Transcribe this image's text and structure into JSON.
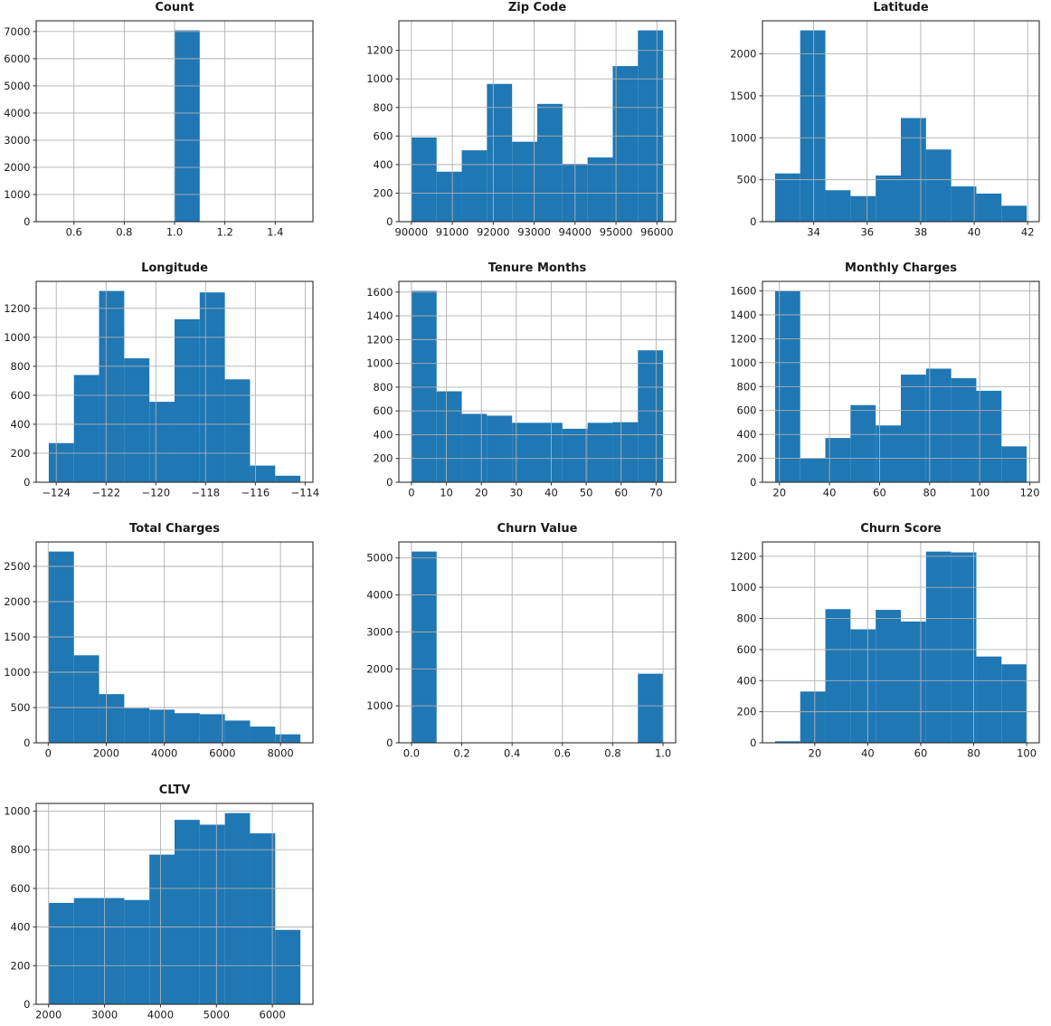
{
  "figure": {
    "background": "#ffffff",
    "bar_color": "#1f77b4",
    "grid_color": "#b0b0b0",
    "spine_color": "#2e2e2e",
    "text_color": "#1a1a1a"
  },
  "chart_data": [
    {
      "type": "histogram",
      "title": "Count",
      "xlabel": "",
      "ylabel": "",
      "grid": true,
      "bin_start": 0.5,
      "bin_width": 0.1,
      "values": [
        0,
        0,
        0,
        0,
        0,
        7043,
        0,
        0,
        0,
        0
      ],
      "xlim": [
        0.45,
        1.55
      ],
      "ylim": [
        0,
        7395
      ],
      "xticks": [
        0.6,
        0.8,
        1.0,
        1.2,
        1.4
      ],
      "xtick_labels": [
        "0.6",
        "0.8",
        "1.0",
        "1.2",
        "1.4"
      ],
      "yticks": [
        0,
        1000,
        2000,
        3000,
        4000,
        5000,
        6000,
        7000
      ],
      "ytick_labels": [
        "0",
        "1000",
        "2000",
        "3000",
        "4000",
        "5000",
        "6000",
        "7000"
      ]
    },
    {
      "type": "histogram",
      "title": "Zip Code",
      "xlabel": "",
      "ylabel": "",
      "grid": true,
      "bin_start": 90001,
      "bin_width": 614.9,
      "values": [
        590,
        350,
        500,
        965,
        560,
        825,
        405,
        450,
        1090,
        1340
      ],
      "xlim": [
        89694,
        96457
      ],
      "ylim": [
        0,
        1407
      ],
      "xticks": [
        90000,
        91000,
        92000,
        93000,
        94000,
        95000,
        96000
      ],
      "xtick_labels": [
        "90000",
        "91000",
        "92000",
        "93000",
        "94000",
        "95000",
        "96000"
      ],
      "yticks": [
        0,
        200,
        400,
        600,
        800,
        1000,
        1200
      ],
      "ytick_labels": [
        "0",
        "200",
        "400",
        "600",
        "800",
        "1000",
        "1200"
      ]
    },
    {
      "type": "histogram",
      "title": "Latitude",
      "xlabel": "",
      "ylabel": "",
      "grid": true,
      "bin_start": 32.556,
      "bin_width": 0.9406,
      "values": [
        575,
        2280,
        375,
        305,
        550,
        1235,
        860,
        420,
        335,
        190
      ],
      "xlim": [
        32.086,
        42.432
      ],
      "ylim": [
        0,
        2394
      ],
      "xticks": [
        34,
        36,
        38,
        40,
        42
      ],
      "xtick_labels": [
        "34",
        "36",
        "38",
        "40",
        "42"
      ],
      "yticks": [
        0,
        500,
        1000,
        1500,
        2000
      ],
      "ytick_labels": [
        "0",
        "500",
        "1000",
        "1500",
        "2000"
      ]
    },
    {
      "type": "histogram",
      "title": "Longitude",
      "xlabel": "",
      "ylabel": "",
      "grid": true,
      "bin_start": -124.3014,
      "bin_width": 1.0108,
      "values": [
        270,
        740,
        1320,
        855,
        555,
        1125,
        1310,
        710,
        115,
        45
      ],
      "xlim": [
        -124.807,
        -113.687
      ],
      "ylim": [
        0,
        1386
      ],
      "xticks": [
        -124,
        -122,
        -120,
        -118,
        -116,
        -114
      ],
      "xtick_labels": [
        "−124",
        "−122",
        "−120",
        "−118",
        "−116",
        "−114"
      ],
      "yticks": [
        0,
        200,
        400,
        600,
        800,
        1000,
        1200
      ],
      "ytick_labels": [
        "0",
        "200",
        "400",
        "600",
        "800",
        "1000",
        "1200"
      ]
    },
    {
      "type": "histogram",
      "title": "Tenure Months",
      "xlabel": "",
      "ylabel": "",
      "grid": true,
      "bin_start": 0,
      "bin_width": 7.2,
      "values": [
        1610,
        765,
        575,
        560,
        500,
        500,
        450,
        500,
        505,
        1110
      ],
      "xlim": [
        -3.6,
        75.6
      ],
      "ylim": [
        0,
        1690
      ],
      "xticks": [
        0,
        10,
        20,
        30,
        40,
        50,
        60,
        70
      ],
      "xtick_labels": [
        "0",
        "10",
        "20",
        "30",
        "40",
        "50",
        "60",
        "70"
      ],
      "yticks": [
        0,
        200,
        400,
        600,
        800,
        1000,
        1200,
        1400,
        1600
      ],
      "ytick_labels": [
        "0",
        "200",
        "400",
        "600",
        "800",
        "1000",
        "1200",
        "1400",
        "1600"
      ]
    },
    {
      "type": "histogram",
      "title": "Monthly Charges",
      "xlabel": "",
      "ylabel": "",
      "grid": true,
      "bin_start": 18.25,
      "bin_width": 10.05,
      "values": [
        1600,
        200,
        370,
        645,
        475,
        900,
        950,
        870,
        765,
        300
      ],
      "xlim": [
        13.225,
        123.775
      ],
      "ylim": [
        0,
        1680
      ],
      "xticks": [
        20,
        40,
        60,
        80,
        100,
        120
      ],
      "xtick_labels": [
        "20",
        "40",
        "60",
        "80",
        "100",
        "120"
      ],
      "yticks": [
        0,
        200,
        400,
        600,
        800,
        1000,
        1200,
        1400,
        1600
      ],
      "ytick_labels": [
        "0",
        "200",
        "400",
        "600",
        "800",
        "1000",
        "1200",
        "1400",
        "1600"
      ]
    },
    {
      "type": "histogram",
      "title": "Total Charges",
      "xlabel": "",
      "ylabel": "",
      "grid": true,
      "bin_start": 18.8,
      "bin_width": 866.6,
      "values": [
        2710,
        1240,
        690,
        490,
        470,
        420,
        405,
        315,
        230,
        120
      ],
      "xlim": [
        -414.5,
        9118.1
      ],
      "ylim": [
        0,
        2846
      ],
      "xticks": [
        0,
        2000,
        4000,
        6000,
        8000
      ],
      "xtick_labels": [
        "0",
        "2000",
        "4000",
        "6000",
        "8000"
      ],
      "yticks": [
        0,
        500,
        1000,
        1500,
        2000,
        2500
      ],
      "ytick_labels": [
        "0",
        "500",
        "1000",
        "1500",
        "2000",
        "2500"
      ]
    },
    {
      "type": "histogram",
      "title": "Churn Value",
      "xlabel": "",
      "ylabel": "",
      "grid": true,
      "bin_start": 0.0,
      "bin_width": 0.1,
      "values": [
        5174,
        0,
        0,
        0,
        0,
        0,
        0,
        0,
        0,
        1869
      ],
      "xlim": [
        -0.05,
        1.05
      ],
      "ylim": [
        0,
        5433
      ],
      "xticks": [
        0.0,
        0.2,
        0.4,
        0.6,
        0.8,
        1.0
      ],
      "xtick_labels": [
        "0.0",
        "0.2",
        "0.4",
        "0.6",
        "0.8",
        "1.0"
      ],
      "yticks": [
        0,
        1000,
        2000,
        3000,
        4000,
        5000
      ],
      "ytick_labels": [
        "0",
        "1000",
        "2000",
        "3000",
        "4000",
        "5000"
      ]
    },
    {
      "type": "histogram",
      "title": "Churn Score",
      "xlabel": "",
      "ylabel": "",
      "grid": true,
      "bin_start": 5,
      "bin_width": 9.5,
      "values": [
        10,
        330,
        860,
        730,
        855,
        780,
        1230,
        1225,
        555,
        505
      ],
      "xlim": [
        0.25,
        104.75
      ],
      "ylim": [
        0,
        1292
      ],
      "xticks": [
        20,
        40,
        60,
        80,
        100
      ],
      "xtick_labels": [
        "20",
        "40",
        "60",
        "80",
        "100"
      ],
      "yticks": [
        0,
        200,
        400,
        600,
        800,
        1000,
        1200
      ],
      "ytick_labels": [
        "0",
        "200",
        "400",
        "600",
        "800",
        "1000",
        "1200"
      ]
    },
    {
      "type": "histogram",
      "title": "CLTV",
      "xlabel": "",
      "ylabel": "",
      "grid": true,
      "bin_start": 2003,
      "bin_width": 449.7,
      "values": [
        525,
        550,
        550,
        540,
        775,
        955,
        930,
        990,
        885,
        385
      ],
      "xlim": [
        1778,
        6725
      ],
      "ylim": [
        0,
        1040
      ],
      "xticks": [
        2000,
        3000,
        4000,
        5000,
        6000
      ],
      "xtick_labels": [
        "2000",
        "3000",
        "4000",
        "5000",
        "6000"
      ],
      "yticks": [
        0,
        200,
        400,
        600,
        800,
        1000
      ],
      "ytick_labels": [
        "0",
        "200",
        "400",
        "600",
        "800",
        "1000"
      ]
    }
  ]
}
